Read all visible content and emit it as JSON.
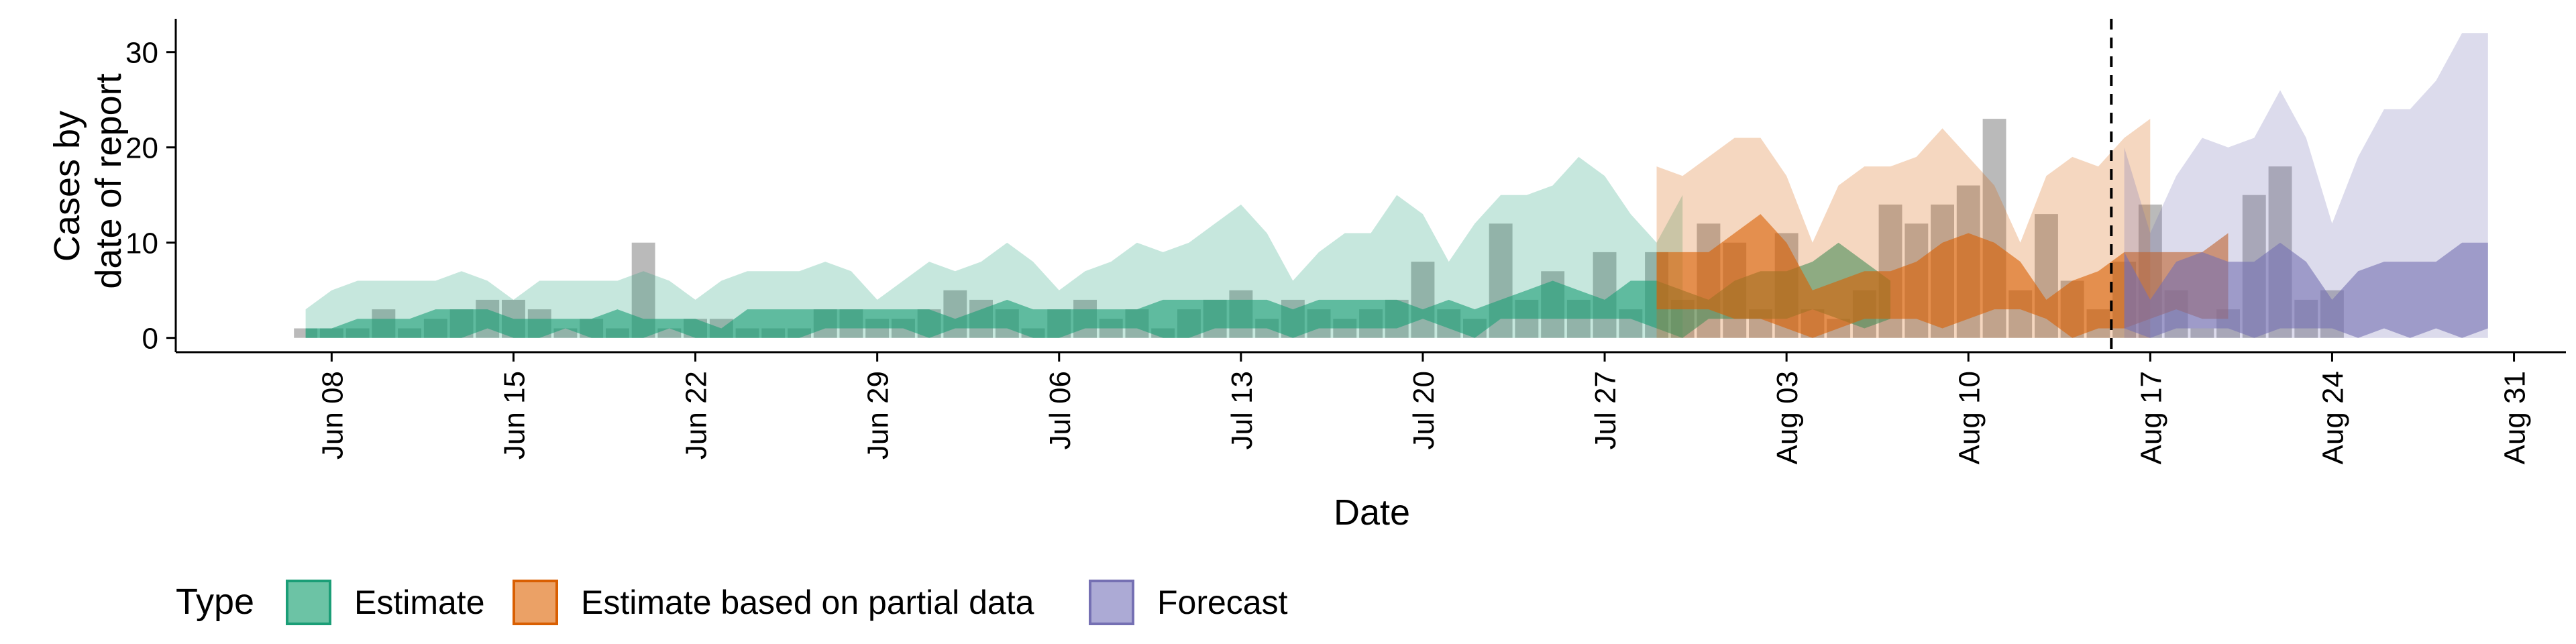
{
  "chart_data": {
    "type": "bar",
    "xlabel": "Date",
    "ylabel_lines": [
      "Cases by",
      "date of report"
    ],
    "ylim": [
      -1.5,
      33.5
    ],
    "yticks": [
      0,
      10,
      20,
      30
    ],
    "x_ticks": [
      "Jun 08",
      "Jun 15",
      "Jun 22",
      "Jun 29",
      "Jul 06",
      "Jul 13",
      "Jul 20",
      "Jul 27",
      "Aug 03",
      "Aug 10",
      "Aug 17",
      "Aug 24",
      "Aug 31"
    ],
    "x_tick_dates": [
      "2020-06-08",
      "2020-06-15",
      "2020-06-22",
      "2020-06-29",
      "2020-07-06",
      "2020-07-13",
      "2020-07-20",
      "2020-07-27",
      "2020-08-03",
      "2020-08-10",
      "2020-08-17",
      "2020-08-24",
      "2020-08-31"
    ],
    "xlim": [
      "2020-06-02",
      "2020-09-02"
    ],
    "forecast_date": "2020-08-15",
    "grid": false,
    "legend_position": "bottom",
    "legend": {
      "title": "Type",
      "items": [
        {
          "label": "Estimate",
          "fill": "#6cc3a5",
          "stroke": "#1b9e77"
        },
        {
          "label": "Estimate based on partial data",
          "fill": "#eba166",
          "stroke": "#d95f02"
        },
        {
          "label": "Forecast",
          "fill": "#acaad5",
          "stroke": "#7570b3"
        }
      ]
    },
    "colors": {
      "Estimate": "#1b9e77",
      "Estimate based on partial data": "#d95f02",
      "Forecast": "#7570b3",
      "bars": "#a3a3a3",
      "axis": "#000000"
    },
    "bars": {
      "start": "2020-06-07",
      "values": [
        1,
        1,
        1,
        3,
        1,
        2,
        3,
        4,
        4,
        3,
        1,
        2,
        1,
        10,
        1,
        2,
        2,
        1,
        1,
        1,
        3,
        3,
        2,
        2,
        3,
        5,
        4,
        3,
        1,
        3,
        4,
        2,
        3,
        1,
        3,
        4,
        5,
        2,
        4,
        3,
        2,
        3,
        4,
        8,
        3,
        2,
        12,
        4,
        7,
        4,
        9,
        3,
        9,
        4,
        12,
        10,
        3,
        11,
        3,
        2,
        5,
        14,
        12,
        14,
        16,
        23,
        5,
        13,
        6,
        3,
        8,
        14,
        5,
        1,
        3,
        15,
        18,
        4,
        5
      ]
    },
    "series": [
      {
        "name": "Estimate",
        "start": "2020-06-07",
        "inner_lower": [
          0,
          0,
          0,
          0,
          0,
          0,
          0,
          1,
          0,
          0,
          1,
          0,
          0,
          0,
          1,
          0,
          0,
          0,
          0,
          0,
          1,
          1,
          1,
          1,
          0,
          1,
          1,
          1,
          0,
          0,
          1,
          1,
          1,
          0,
          0,
          1,
          1,
          1,
          0,
          1,
          1,
          1,
          1,
          2,
          1,
          0,
          2,
          2,
          2,
          2,
          2,
          2,
          1,
          0,
          2,
          2,
          2,
          2,
          3,
          2,
          1,
          2
        ],
        "inner_upper": [
          1,
          1,
          2,
          2,
          2,
          3,
          3,
          3,
          2,
          2,
          2,
          2,
          3,
          2,
          2,
          2,
          1,
          3,
          3,
          3,
          3,
          3,
          3,
          3,
          3,
          2,
          3,
          4,
          3,
          3,
          3,
          3,
          3,
          4,
          4,
          4,
          4,
          4,
          3,
          4,
          4,
          4,
          4,
          3,
          4,
          3,
          4,
          5,
          6,
          5,
          4,
          6,
          6,
          5,
          4,
          6,
          7,
          7,
          8,
          10,
          8,
          6,
          4,
          7
        ],
        "outer_lower": [
          0,
          0,
          0,
          0,
          0,
          0,
          0,
          0,
          0,
          0,
          0,
          0,
          0,
          0,
          0,
          0,
          0,
          0,
          0,
          0,
          0,
          0,
          0,
          0,
          0,
          0,
          0,
          0,
          0,
          0,
          0,
          0,
          0,
          0,
          0,
          0,
          0,
          0,
          0,
          0,
          0,
          0,
          0,
          0,
          0,
          0,
          0,
          0,
          0,
          0,
          0,
          0,
          0,
          0,
          0,
          0,
          0,
          0,
          0,
          0,
          0,
          0,
          0,
          0
        ],
        "outer_upper": [
          3,
          5,
          6,
          6,
          6,
          6,
          7,
          6,
          4,
          6,
          6,
          6,
          6,
          7,
          6,
          4,
          6,
          7,
          7,
          7,
          8,
          7,
          4,
          6,
          8,
          7,
          8,
          10,
          8,
          5,
          7,
          8,
          10,
          9,
          10,
          12,
          14,
          11,
          6,
          9,
          11,
          11,
          15,
          13,
          8,
          12,
          15,
          15,
          16,
          19,
          17,
          13,
          10,
          15
        ]
      },
      {
        "name": "Estimate based on partial data",
        "start": "2020-07-29",
        "inner_lower": [
          3,
          3,
          3,
          2,
          2,
          1,
          0,
          1,
          2,
          2,
          2,
          1,
          2,
          3,
          3,
          2,
          0,
          1,
          1,
          2,
          3,
          2,
          2
        ],
        "inner_upper": [
          9,
          9,
          9,
          11,
          13,
          10,
          5,
          6,
          7,
          7,
          8,
          10,
          11,
          10,
          8,
          4,
          6,
          7,
          9,
          9,
          9,
          9,
          11
        ],
        "outer_lower": [
          0,
          0,
          0,
          0,
          0,
          0,
          0,
          0,
          0,
          0,
          0,
          0,
          0,
          0,
          0,
          0,
          0,
          0,
          0,
          0,
          0,
          0,
          0
        ],
        "outer_upper": [
          18,
          17,
          19,
          21,
          21,
          17,
          10,
          16,
          18,
          18,
          19,
          22,
          19,
          16,
          10,
          17,
          19,
          18,
          21,
          23
        ]
      },
      {
        "name": "Forecast",
        "start": "2020-08-16",
        "inner_lower": [
          1,
          0,
          1,
          1,
          1,
          0,
          1,
          1,
          1,
          0,
          1,
          0,
          1,
          0,
          1
        ],
        "inner_upper": [
          9,
          4,
          8,
          9,
          8,
          8,
          10,
          8,
          4,
          7,
          8,
          8,
          8,
          10,
          10
        ],
        "outer_lower": [
          0,
          0,
          0,
          0,
          0,
          0,
          0,
          0,
          0,
          0,
          0,
          0,
          0,
          0,
          0
        ],
        "outer_upper": [
          20,
          11,
          17,
          21,
          20,
          21,
          26,
          21,
          12,
          19,
          24,
          24,
          27,
          32,
          32
        ]
      }
    ]
  }
}
